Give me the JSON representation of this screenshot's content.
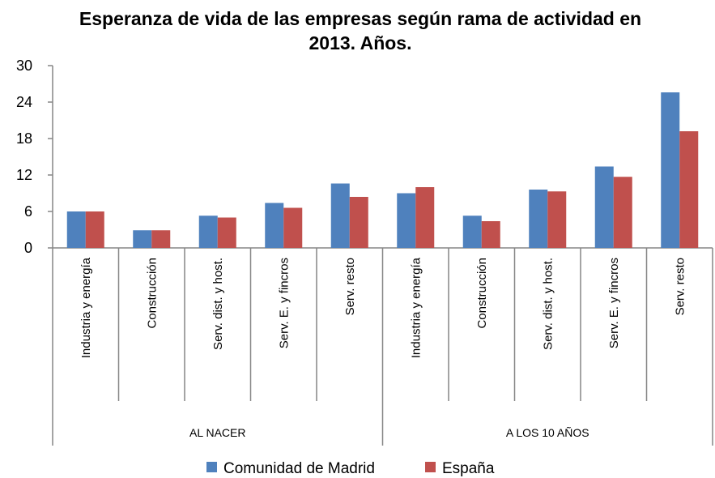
{
  "chart_data": {
    "type": "bar",
    "title": "Esperanza de vida de las empresas según rama de actividad en 2013. Años.",
    "categories": [
      "Industria y energía",
      "Construcción",
      "Serv. dist. y host.",
      "Serv. E. y fincros",
      "Serv. resto",
      "Industria y energía",
      "Construcción",
      "Serv. dist. y host.",
      "Serv. E. y fincros",
      "Serv. resto"
    ],
    "groups": [
      "AL NACER",
      "A LOS 10 AÑOS"
    ],
    "series": [
      {
        "name": "Comunidad de Madrid",
        "color": "#4f81bd",
        "values": [
          6,
          2.9,
          5.3,
          7.4,
          10.6,
          9,
          5.3,
          9.6,
          13.4,
          25.6
        ]
      },
      {
        "name": "España",
        "color": "#c0504d",
        "values": [
          6,
          2.9,
          5.0,
          6.6,
          8.4,
          10,
          4.4,
          9.3,
          11.7,
          19.2
        ]
      }
    ],
    "ylim": [
      0,
      30
    ],
    "yticks": [
      0,
      6,
      12,
      18,
      24,
      30
    ],
    "grid": false,
    "legend": "bottom"
  }
}
